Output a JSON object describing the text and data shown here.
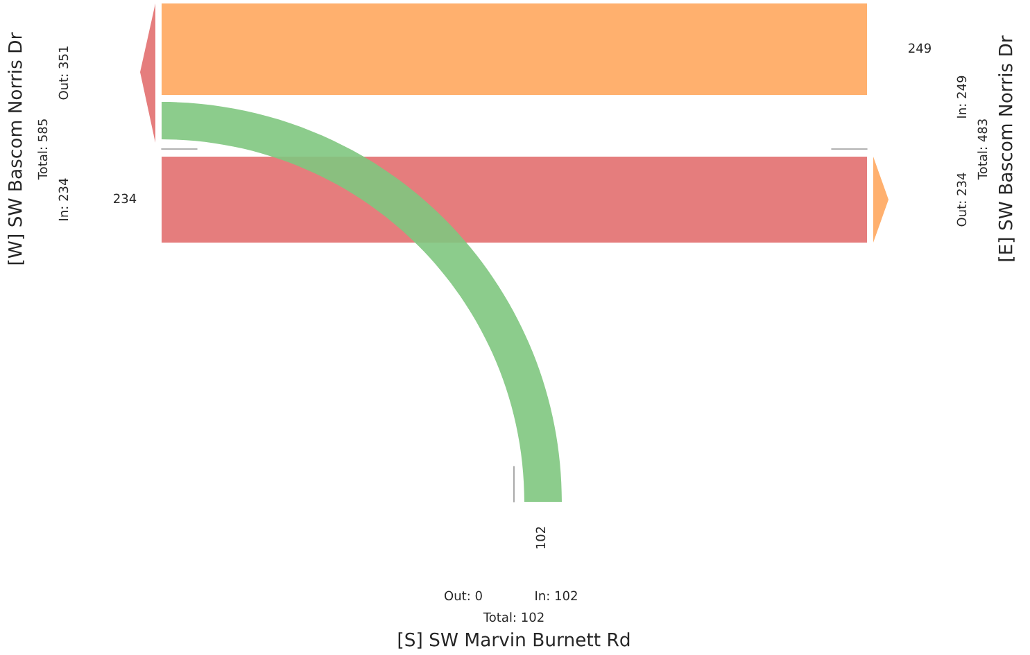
{
  "chart_data": {
    "type": "other",
    "categories": [
      null,
      null,
      null
    ],
    "values": [
      249,
      234,
      102
    ],
    "colors": [
      "#ffb06e",
      "#e57d7d",
      "#80c680"
    ],
    "data_labels": true,
    "annotations": [
      "[W] SW Bascom Norris Dr",
      "Total: 585",
      "Out: 351",
      "In: 234",
      "[E] SW Bascom Norris Dr",
      "In: 249",
      "Total: 483",
      "Out: 234",
      "[S] SW Marvin Burnett Rd",
      "Out: 0",
      "In: 102",
      "Total: 102"
    ]
  }
}
